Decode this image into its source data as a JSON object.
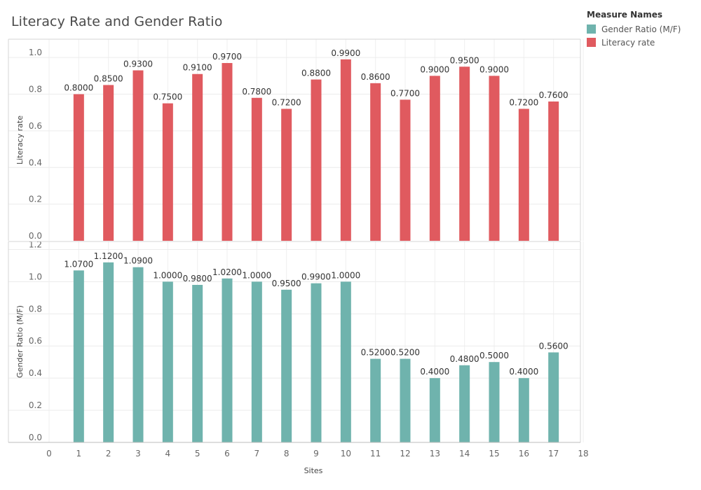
{
  "chart_data": {
    "type": "bar",
    "title": "Literacy Rate and Gender Ratio",
    "xlabel": "Sites",
    "x_ticks": [
      0,
      1,
      2,
      3,
      4,
      5,
      6,
      7,
      8,
      9,
      10,
      11,
      12,
      13,
      14,
      15,
      16,
      17,
      18
    ],
    "xlim": [
      0,
      18
    ],
    "legend": {
      "title": "Measure Names",
      "placement": "top-right",
      "items": [
        {
          "label": "Gender Ratio (M/F)",
          "color": "#6fb3ad"
        },
        {
          "label": "Literacy rate",
          "color": "#e05a5f"
        }
      ]
    },
    "panels": [
      {
        "ylabel": "Literacy rate",
        "ylim": [
          0,
          1.1
        ],
        "y_ticks": [
          "0.0",
          "0.2",
          "0.4",
          "0.6",
          "0.8",
          "1.0"
        ],
        "color": "#e05a5f",
        "x": [
          1,
          2,
          3,
          4,
          5,
          6,
          7,
          8,
          9,
          10,
          11,
          12,
          13,
          14,
          15,
          16,
          17
        ],
        "values": [
          0.8,
          0.85,
          0.93,
          0.75,
          0.91,
          0.97,
          0.78,
          0.72,
          0.88,
          0.99,
          0.86,
          0.77,
          0.9,
          0.95,
          0.9,
          0.72,
          0.76
        ],
        "data_labels": [
          "0.8000",
          "0.8500",
          "0.9300",
          "0.7500",
          "0.9100",
          "0.9700",
          "0.7800",
          "0.7200",
          "0.8800",
          "0.9900",
          "0.8600",
          "0.7700",
          "0.9000",
          "0.9500",
          "0.9000",
          "0.7200",
          "0.7600"
        ]
      },
      {
        "ylabel": "Gender Ratio (M/F)",
        "ylim": [
          0,
          1.25
        ],
        "y_ticks": [
          "0.0",
          "0.2",
          "0.4",
          "0.6",
          "0.8",
          "1.0",
          "1.2"
        ],
        "color": "#6fb3ad",
        "x": [
          1,
          2,
          3,
          4,
          5,
          6,
          7,
          8,
          9,
          10,
          11,
          12,
          13,
          14,
          15,
          16,
          17
        ],
        "values": [
          1.07,
          1.12,
          1.09,
          1.0,
          0.98,
          1.02,
          1.0,
          0.95,
          0.99,
          1.0,
          0.52,
          0.52,
          0.4,
          0.48,
          0.5,
          0.4,
          0.56
        ],
        "data_labels": [
          "1.0700",
          "1.1200",
          "1.0900",
          "1.0000",
          "0.9800",
          "1.0200",
          "1.0000",
          "0.9500",
          "0.9900",
          "1.0000",
          "0.5200",
          "0.5200",
          "0.4000",
          "0.4800",
          "0.5000",
          "0.4000",
          "0.5600"
        ]
      }
    ]
  }
}
